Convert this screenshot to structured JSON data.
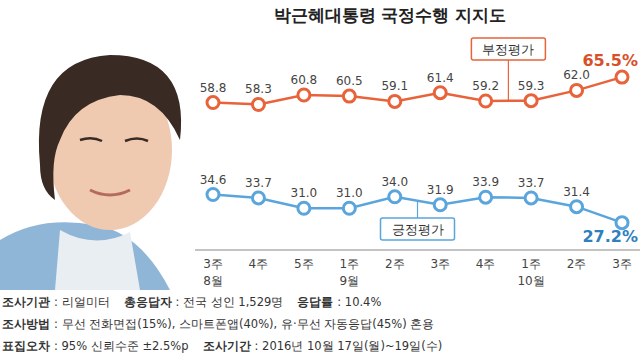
{
  "chart_data": {
    "type": "line",
    "title": "박근혜대통령 국정수행 지지도",
    "categories": [
      "3주",
      "4주",
      "5주",
      "1주",
      "2주",
      "3주",
      "4주",
      "1주",
      "2주",
      "3주"
    ],
    "month_labels": [
      "8월",
      null,
      null,
      "9월",
      null,
      null,
      null,
      "10월",
      null,
      null
    ],
    "series": [
      {
        "name": "부정평가",
        "color": "#e8633a",
        "marker": "circle",
        "values": [
          58.8,
          58.3,
          60.8,
          60.5,
          59.1,
          61.4,
          59.2,
          59.3,
          62.0,
          65.5
        ],
        "value_labels": [
          "58.8",
          "58.3",
          "60.8",
          "60.5",
          "59.1",
          "61.4",
          "59.2",
          "59.3",
          "62.0",
          "65.5%"
        ]
      },
      {
        "name": "긍정평가",
        "color": "#5aa5dc",
        "marker": "circle",
        "values": [
          34.6,
          33.7,
          31.0,
          31.0,
          34.0,
          31.9,
          33.9,
          33.7,
          31.4,
          27.2
        ],
        "value_labels": [
          "34.6",
          "33.7",
          "31.0",
          "31.0",
          "34.0",
          "31.9",
          "33.9",
          "33.7",
          "31.4",
          "27.2%"
        ]
      }
    ],
    "ylim": [
      20,
      70
    ],
    "data_labels": true,
    "tick_labels": "x",
    "grid": false
  },
  "footer": [
    [
      {
        "label": "조사기관",
        "text": ": 리얼미터"
      },
      {
        "label": "총응답자",
        "text": ": 전국 성인 1,529명"
      },
      {
        "label": "응답률",
        "text": ": 10.4%"
      }
    ],
    [
      {
        "label": "조사방법",
        "text": ": 무선 전화면접(15%), 스마트폰앱(40%), 유·무선 자동응답(45%) 혼용"
      }
    ],
    [
      {
        "label": "표집오차",
        "text": ": 95% 신뢰수준 ±2.5%p"
      },
      {
        "label": "조사기간",
        "text": ": 2016년 10월 17일(월)~19일(수)"
      }
    ]
  ]
}
